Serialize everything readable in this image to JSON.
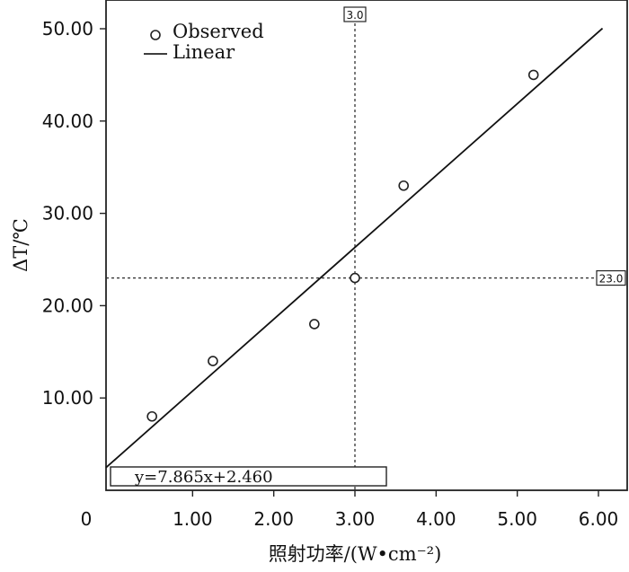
{
  "chart_data": {
    "type": "scatter",
    "title": "",
    "xlabel": "照射功率/(W•cm⁻²)",
    "ylabel": "ΔT/℃",
    "xlim": [
      0,
      6.4
    ],
    "ylim": [
      0,
      52
    ],
    "x_ticks": [
      {
        "value": 0,
        "label": "0"
      },
      {
        "value": 1,
        "label": "1.00"
      },
      {
        "value": 2,
        "label": "2.00"
      },
      {
        "value": 3,
        "label": "3.00"
      },
      {
        "value": 4,
        "label": "4.00"
      },
      {
        "value": 5,
        "label": "5.00"
      },
      {
        "value": 6,
        "label": "6.00"
      }
    ],
    "y_ticks": [
      {
        "value": 10,
        "label": "10.00"
      },
      {
        "value": 20,
        "label": "20.00"
      },
      {
        "value": 30,
        "label": "30.00"
      },
      {
        "value": 40,
        "label": "40.00"
      },
      {
        "value": 50,
        "label": "50.00"
      }
    ],
    "series": [
      {
        "name": "Observed",
        "kind": "points",
        "x": [
          0.5,
          1.25,
          2.5,
          3.0,
          3.6,
          5.2
        ],
        "y": [
          8,
          14,
          18,
          23,
          33,
          45
        ]
      },
      {
        "name": "Linear",
        "kind": "fit",
        "slope": 7.865,
        "intercept": 2.46
      }
    ],
    "reference_lines": {
      "x": {
        "value": 3.0,
        "label": "3.0"
      },
      "y": {
        "value": 23.0,
        "label": "23.0"
      }
    },
    "equation": "y=7.865x+2.460",
    "legend": {
      "position": "top-left"
    },
    "grid": false
  }
}
